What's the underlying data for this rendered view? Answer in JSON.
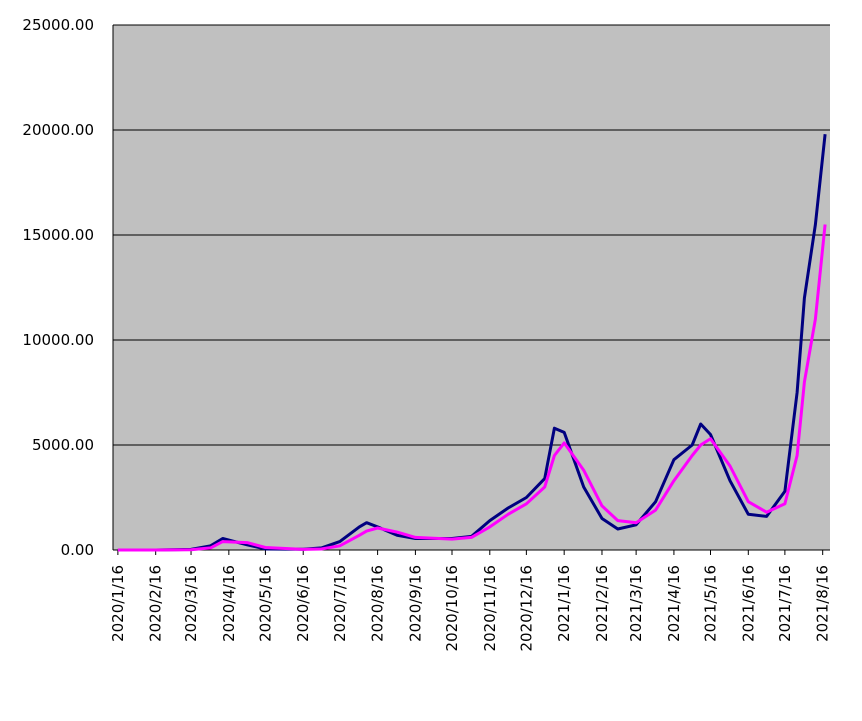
{
  "chart_data": {
    "type": "line",
    "x": [
      "2020/1/16",
      "2020/2/16",
      "2020/3/16",
      "2020/4/1",
      "2020/4/11",
      "2020/5/1",
      "2020/5/16",
      "2020/6/16",
      "2020/7/1",
      "2020/7/16",
      "2020/8/1",
      "2020/8/7",
      "2020/8/16",
      "2020/9/1",
      "2020/9/16",
      "2020/10/16",
      "2020/11/1",
      "2020/11/16",
      "2020/12/1",
      "2020/12/16",
      "2020/12/31",
      "2021/1/8",
      "2021/1/16",
      "2021/2/1",
      "2021/2/16",
      "2021/3/1",
      "2021/3/16",
      "2021/4/1",
      "2021/4/16",
      "2021/5/1",
      "2021/5/8",
      "2021/5/16",
      "2021/6/1",
      "2021/6/16",
      "2021/7/1",
      "2021/7/16",
      "2021/7/26",
      "2021/8/1",
      "2021/8/10",
      "2021/8/18"
    ],
    "series": [
      {
        "color": "#000080",
        "values": [
          0,
          0,
          30,
          200,
          550,
          250,
          50,
          40,
          100,
          400,
          1100,
          1300,
          1100,
          700,
          550,
          550,
          650,
          1400,
          2000,
          2500,
          3400,
          5800,
          5600,
          3000,
          1500,
          1000,
          1200,
          2300,
          4300,
          5000,
          6000,
          5500,
          3300,
          1700,
          1600,
          2800,
          7500,
          12000,
          15500,
          19800
        ]
      },
      {
        "color": "#ff00ff",
        "values": [
          0,
          0,
          10,
          100,
          400,
          350,
          120,
          30,
          50,
          200,
          700,
          900,
          1050,
          850,
          600,
          520,
          600,
          1100,
          1700,
          2200,
          3000,
          4500,
          5100,
          3800,
          2100,
          1400,
          1300,
          1900,
          3300,
          4500,
          5000,
          5300,
          4000,
          2300,
          1800,
          2200,
          4500,
          8000,
          11000,
          15500
        ]
      }
    ],
    "xlim": [
      "2020/1/12",
      "2021/8/22"
    ],
    "xticks": [
      "2020/1/16",
      "2020/2/16",
      "2020/3/16",
      "2020/4/16",
      "2020/5/16",
      "2020/6/16",
      "2020/7/16",
      "2020/8/16",
      "2020/9/16",
      "2020/10/16",
      "2020/11/16",
      "2020/12/16",
      "2021/1/16",
      "2021/2/16",
      "2021/3/16",
      "2021/4/16",
      "2021/5/16",
      "2021/6/16",
      "2021/7/16",
      "2021/8/16"
    ],
    "ylim": [
      0,
      25000
    ],
    "yticks": [
      {
        "value": 0,
        "label": "0.00"
      },
      {
        "value": 5000,
        "label": "5000.00"
      },
      {
        "value": 10000,
        "label": "10000.00"
      },
      {
        "value": 15000,
        "label": "15000.00"
      },
      {
        "value": 20000,
        "label": "20000.00"
      },
      {
        "value": 25000,
        "label": "25000.00"
      }
    ],
    "grid": true,
    "background": "#c0c0c0"
  }
}
